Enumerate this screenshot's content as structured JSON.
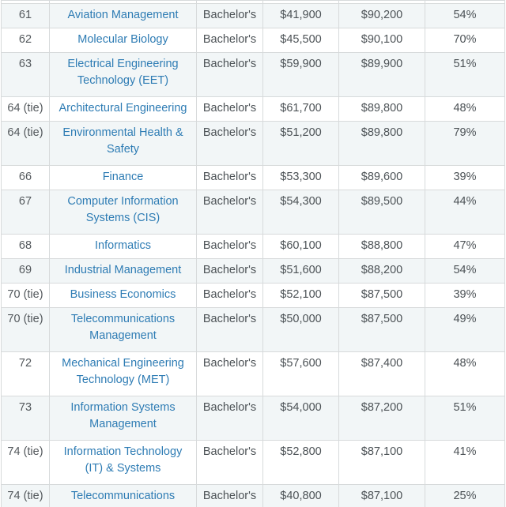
{
  "colors": {
    "link_blue": "#2e7cb4",
    "row_stripe": "#f2f6f7",
    "border_gray": "#d7dadb",
    "text_gray": "#4c5256"
  },
  "table": {
    "description": "College majors salary ranking table fragment (no header visible, scrolled mid-table)",
    "columns": [
      "rank",
      "major",
      "degree",
      "early_career_pay",
      "mid_career_pay",
      "high_meaning_percent"
    ],
    "rows": [
      {
        "rank": "61",
        "major": "Aviation Management",
        "degree": "Bachelor's",
        "early": "$41,900",
        "mid": "$90,200",
        "pct": "54%",
        "two_line": false
      },
      {
        "rank": "62",
        "major": "Molecular Biology",
        "degree": "Bachelor's",
        "early": "$45,500",
        "mid": "$90,100",
        "pct": "70%",
        "two_line": false
      },
      {
        "rank": "63",
        "major": "Electrical Engineering Technology (EET)",
        "degree": "Bachelor's",
        "early": "$59,900",
        "mid": "$89,900",
        "pct": "51%",
        "two_line": true
      },
      {
        "rank": "64 (tie)",
        "major": "Architectural Engineering",
        "degree": "Bachelor's",
        "early": "$61,700",
        "mid": "$89,800",
        "pct": "48%",
        "two_line": false
      },
      {
        "rank": "64 (tie)",
        "major": "Environmental Health & Safety",
        "degree": "Bachelor's",
        "early": "$51,200",
        "mid": "$89,800",
        "pct": "79%",
        "two_line": true
      },
      {
        "rank": "66",
        "major": "Finance",
        "degree": "Bachelor's",
        "early": "$53,300",
        "mid": "$89,600",
        "pct": "39%",
        "two_line": false
      },
      {
        "rank": "67",
        "major": "Computer Information Systems (CIS)",
        "degree": "Bachelor's",
        "early": "$54,300",
        "mid": "$89,500",
        "pct": "44%",
        "two_line": true
      },
      {
        "rank": "68",
        "major": "Informatics",
        "degree": "Bachelor's",
        "early": "$60,100",
        "mid": "$88,800",
        "pct": "47%",
        "two_line": false
      },
      {
        "rank": "69",
        "major": "Industrial Management",
        "degree": "Bachelor's",
        "early": "$51,600",
        "mid": "$88,200",
        "pct": "54%",
        "two_line": false
      },
      {
        "rank": "70 (tie)",
        "major": "Business Economics",
        "degree": "Bachelor's",
        "early": "$52,100",
        "mid": "$87,500",
        "pct": "39%",
        "two_line": false
      },
      {
        "rank": "70 (tie)",
        "major": "Telecommunications Management",
        "degree": "Bachelor's",
        "early": "$50,000",
        "mid": "$87,500",
        "pct": "49%",
        "two_line": true
      },
      {
        "rank": "72",
        "major": "Mechanical Engineering Technology (MET)",
        "degree": "Bachelor's",
        "early": "$57,600",
        "mid": "$87,400",
        "pct": "48%",
        "two_line": true
      },
      {
        "rank": "73",
        "major": "Information Systems Management",
        "degree": "Bachelor's",
        "early": "$54,000",
        "mid": "$87,200",
        "pct": "51%",
        "two_line": true
      },
      {
        "rank": "74 (tie)",
        "major": "Information Technology (IT) & Systems",
        "degree": "Bachelor's",
        "early": "$52,800",
        "mid": "$87,100",
        "pct": "41%",
        "two_line": true
      },
      {
        "rank": "74 (tie)",
        "major": "Telecommunications",
        "degree": "Bachelor's",
        "early": "$40,800",
        "mid": "$87,100",
        "pct": "25%",
        "two_line": false
      }
    ]
  }
}
